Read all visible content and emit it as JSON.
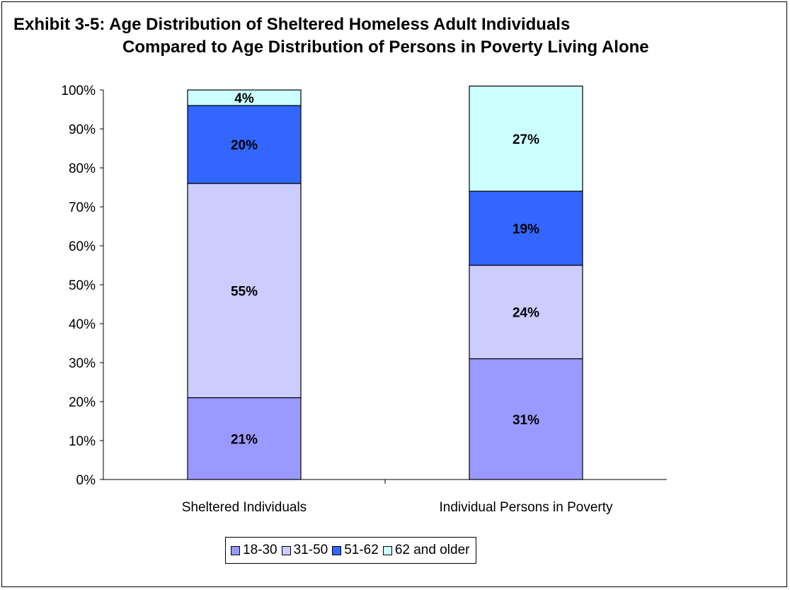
{
  "title": {
    "line1": "Exhibit 3-5: Age Distribution of Sheltered Homeless Adult Individuals",
    "line2": "Compared to Age Distribution of Persons in Poverty Living Alone"
  },
  "chart_data": {
    "type": "bar",
    "stacked": true,
    "categories": [
      "Sheltered Individuals",
      "Individual Persons in Poverty"
    ],
    "series": [
      {
        "name": "18-30",
        "values": [
          21,
          31
        ],
        "labels": [
          "21%",
          "31%"
        ],
        "color": "#9999ff"
      },
      {
        "name": "31-50",
        "values": [
          55,
          24
        ],
        "labels": [
          "55%",
          "24%"
        ],
        "color": "#ccccff"
      },
      {
        "name": "51-62",
        "values": [
          20,
          19
        ],
        "labels": [
          "20%",
          "19%"
        ],
        "color": "#3366ff"
      },
      {
        "name": "62 and older",
        "values": [
          4,
          27
        ],
        "labels": [
          "4%",
          "27%"
        ],
        "color": "#ccffff"
      }
    ],
    "ylim": [
      0,
      100
    ],
    "yticks": [
      "0%",
      "10%",
      "20%",
      "30%",
      "40%",
      "50%",
      "60%",
      "70%",
      "80%",
      "90%",
      "100%"
    ],
    "grid": false,
    "legend_position": "bottom"
  }
}
